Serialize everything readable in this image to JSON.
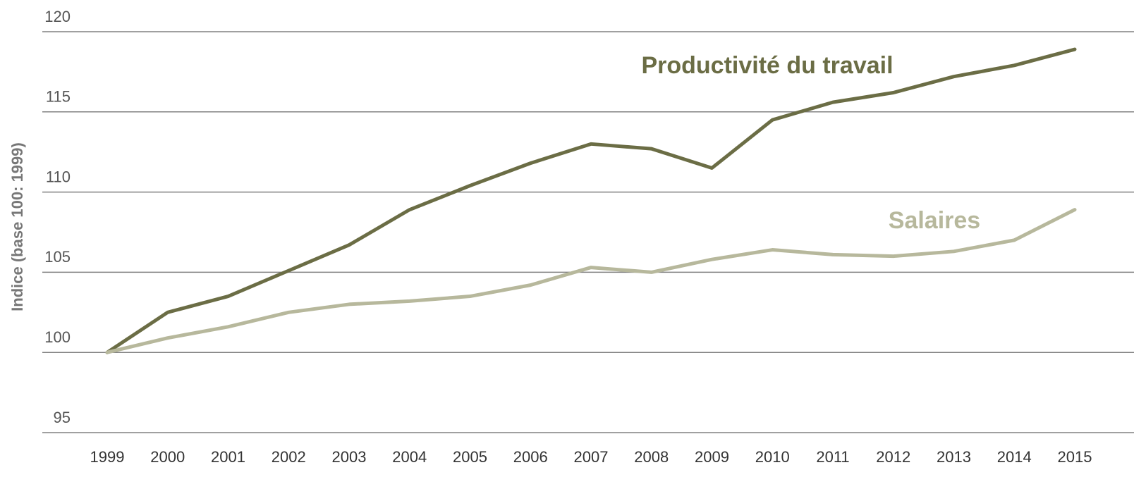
{
  "chart_data": {
    "type": "line",
    "y_label": "Indice (base 100: 1999)",
    "categories": [
      "1999",
      "2000",
      "2001",
      "2002",
      "2003",
      "2004",
      "2005",
      "2006",
      "2007",
      "2008",
      "2009",
      "2010",
      "2011",
      "2012",
      "2013",
      "2014",
      "2015"
    ],
    "series": [
      {
        "name": "Productivité du travail",
        "color": "#6b6d45",
        "values": [
          100,
          102.5,
          103.5,
          105.1,
          106.7,
          108.9,
          110.4,
          111.8,
          113.0,
          112.7,
          111.5,
          114.5,
          115.6,
          116.2,
          117.2,
          117.9,
          118.9
        ]
      },
      {
        "name": "Salaires",
        "color": "#b7b89c",
        "values": [
          100,
          100.9,
          101.6,
          102.5,
          103.0,
          103.2,
          103.5,
          104.2,
          105.3,
          105.0,
          105.8,
          106.4,
          106.1,
          106.0,
          106.3,
          107.0,
          108.9
        ]
      }
    ],
    "ylim": [
      95,
      120
    ],
    "yticks": [
      95,
      100,
      105,
      110,
      115,
      120
    ],
    "grid": true
  }
}
